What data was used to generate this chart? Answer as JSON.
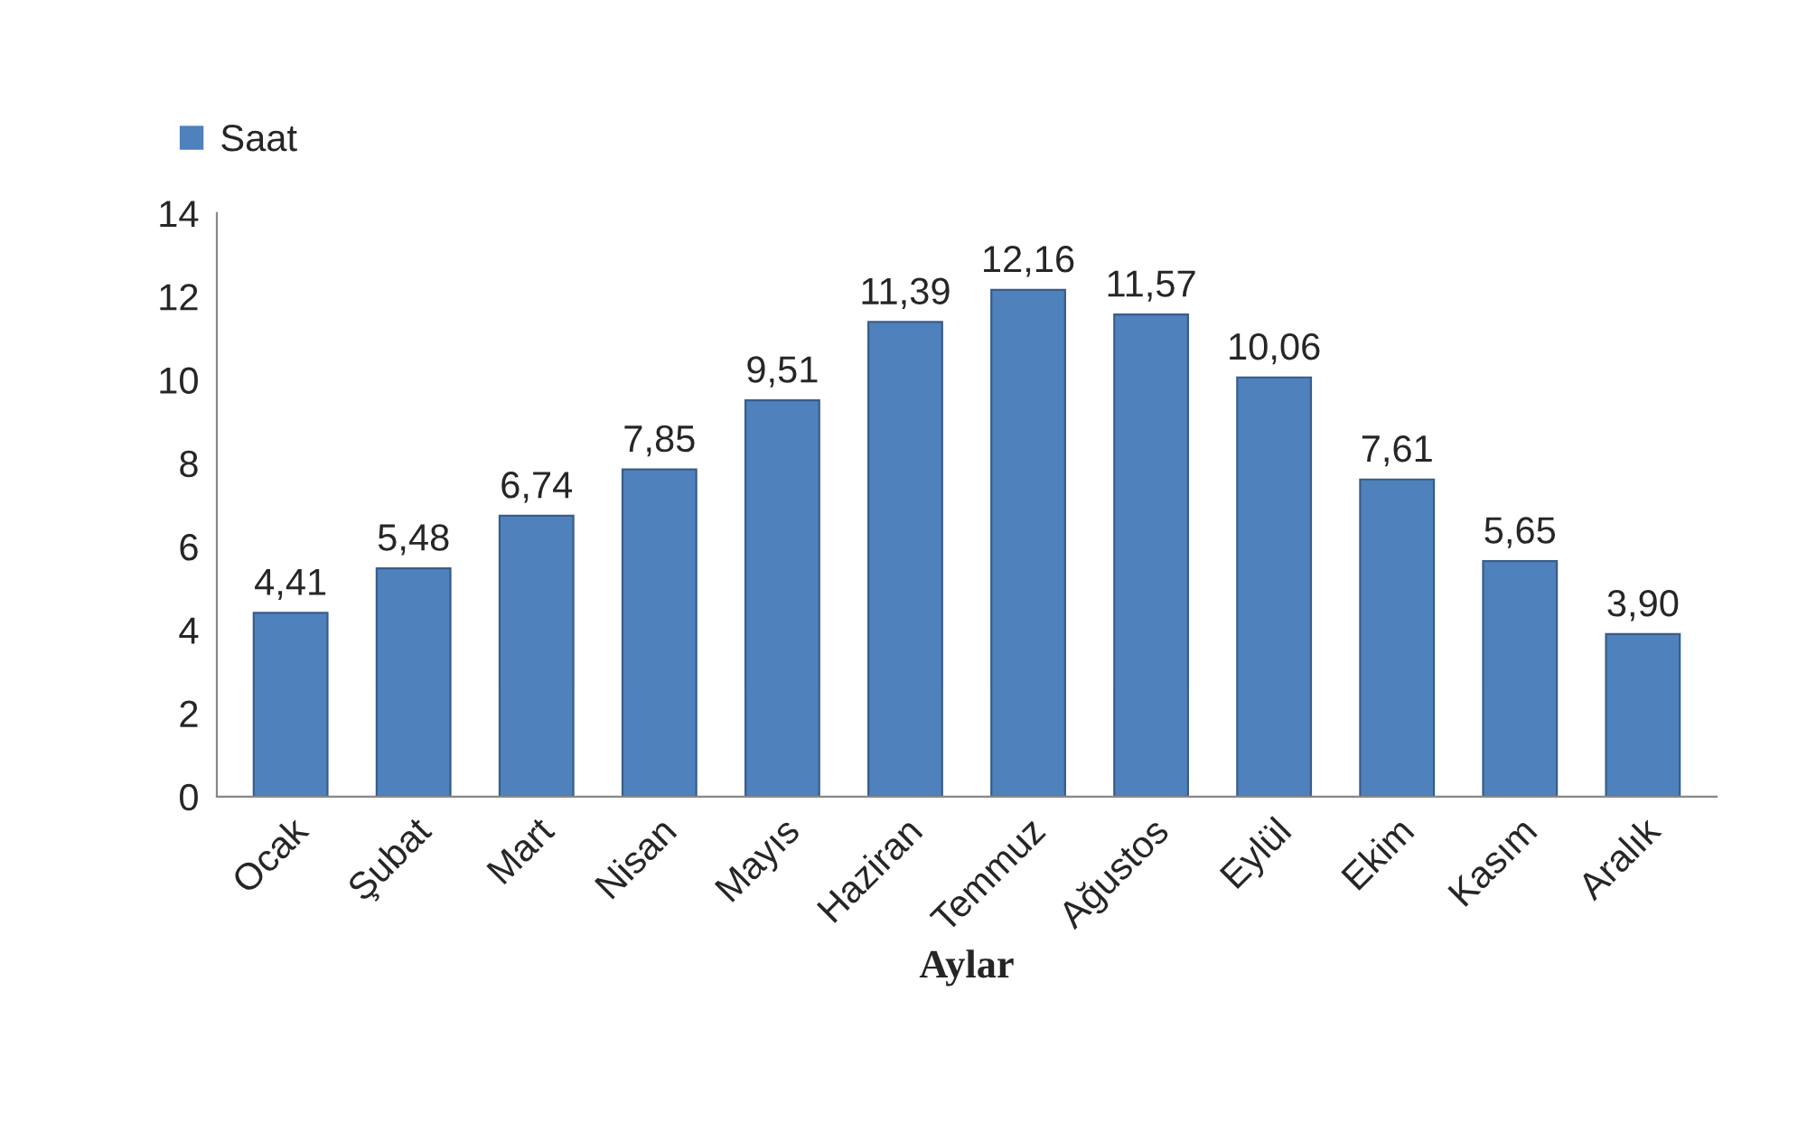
{
  "chart_data": {
    "type": "bar",
    "xlabel": "Aylar",
    "categories": [
      "Ocak",
      "Şubat",
      "Mart",
      "Nisan",
      "Mayıs",
      "Haziran",
      "Temmuz",
      "Ağustos",
      "Eylül",
      "Ekim",
      "Kasım",
      "Aralık"
    ],
    "series": [
      {
        "name": "Saat",
        "color": "#4f81bd",
        "values": [
          4.41,
          5.48,
          6.74,
          7.85,
          9.51,
          11.39,
          12.16,
          11.57,
          10.06,
          7.61,
          5.65,
          3.9
        ],
        "value_labels": [
          "4,41",
          "5,48",
          "6,74",
          "7,85",
          "9,51",
          "11,39",
          "12,16",
          "11,57",
          "10,06",
          "7,61",
          "5,65",
          "3,90"
        ]
      }
    ],
    "ylim": [
      0,
      14
    ],
    "yticks": [
      0,
      2,
      4,
      6,
      8,
      10,
      12,
      14
    ],
    "grid": false,
    "legend": "top left"
  }
}
